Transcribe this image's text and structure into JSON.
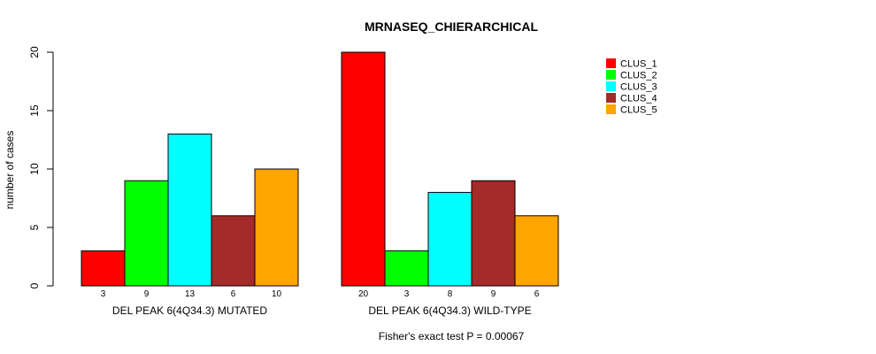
{
  "chart_data": {
    "type": "bar",
    "title": "MRNASEQ_CHIERARCHICAL",
    "ylabel": "number of cases",
    "ylim": [
      0,
      20
    ],
    "yticks": [
      0,
      5,
      10,
      15,
      20
    ],
    "groups": [
      "DEL PEAK  6(4Q34.3) MUTATED",
      "DEL PEAK  6(4Q34.3) WILD-TYPE"
    ],
    "series": [
      {
        "name": "CLUS_1",
        "color": "#ff0000",
        "values": [
          3,
          20
        ]
      },
      {
        "name": "CLUS_2",
        "color": "#00ff00",
        "values": [
          9,
          3
        ]
      },
      {
        "name": "CLUS_3",
        "color": "#00ffff",
        "values": [
          13,
          8
        ]
      },
      {
        "name": "CLUS_4",
        "color": "#a52a2a",
        "values": [
          6,
          9
        ]
      },
      {
        "name": "CLUS_5",
        "color": "#ffa500",
        "values": [
          10,
          6
        ]
      }
    ],
    "legend_position": "top-right",
    "footnote": "Fisher's exact test P = 0.00067"
  }
}
